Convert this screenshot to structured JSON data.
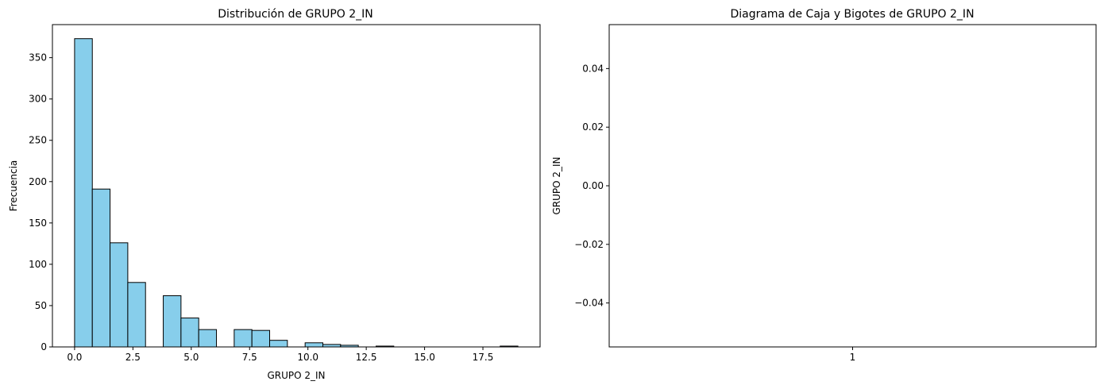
{
  "chart_data": [
    {
      "type": "bar",
      "title": "Distribución de GRUPO 2_IN",
      "xlabel": "GRUPO 2_IN",
      "ylabel": "Frecuencia",
      "xlim": [
        -0.95,
        19.95
      ],
      "ylim": [
        0,
        390
      ],
      "bar_color": "#87CEEB",
      "edge_color": "#000000",
      "bin_edges": [
        0,
        0.76,
        1.52,
        2.28,
        3.04,
        3.8,
        4.56,
        5.32,
        6.08,
        6.84,
        7.6,
        8.36,
        9.12,
        9.88,
        10.64,
        11.4,
        12.16,
        12.92,
        13.68,
        14.44,
        15.2,
        15.96,
        16.72,
        17.48,
        18.24,
        19.0
      ],
      "values": [
        373,
        191,
        126,
        78,
        0,
        62,
        35,
        21,
        0,
        21,
        20,
        8,
        0,
        5,
        3,
        2,
        0,
        1,
        0,
        0,
        0,
        0,
        0,
        0,
        1
      ],
      "xticks": [
        0.0,
        2.5,
        5.0,
        7.5,
        10.0,
        12.5,
        15.0,
        17.5
      ],
      "xtick_labels": [
        "0.0",
        "2.5",
        "5.0",
        "7.5",
        "10.0",
        "12.5",
        "15.0",
        "17.5"
      ],
      "yticks": [
        0,
        50,
        100,
        150,
        200,
        250,
        300,
        350
      ],
      "ytick_labels": [
        "0",
        "50",
        "100",
        "150",
        "200",
        "250",
        "300",
        "350"
      ],
      "grid": false
    },
    {
      "type": "box",
      "title": "Diagrama de Caja y Bigotes de GRUPO 2_IN",
      "xlabel": "",
      "ylabel": "GRUPO 2_IN",
      "ylim": [
        -0.055,
        0.055
      ],
      "categories": [
        "1"
      ],
      "yticks": [
        -0.04,
        -0.02,
        0.0,
        0.02,
        0.04
      ],
      "ytick_labels": [
        "−0.04",
        "−0.02",
        "0.00",
        "0.02",
        "0.04"
      ],
      "grid": false
    }
  ]
}
